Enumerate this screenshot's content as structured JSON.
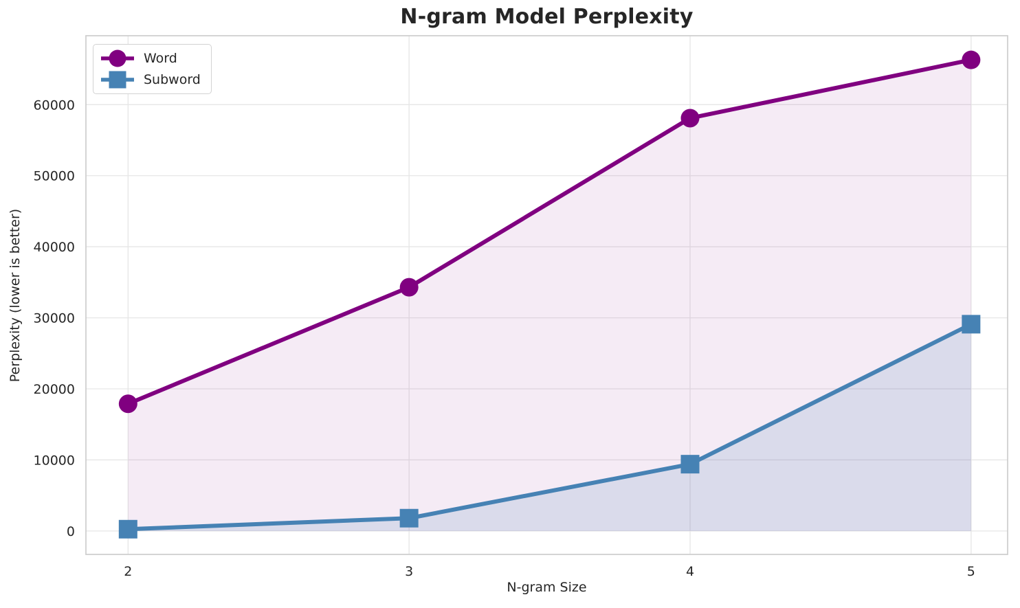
{
  "page": {
    "background": "#ffffff"
  },
  "chart_data": {
    "type": "line",
    "title": "N-gram Model Perplexity",
    "xlabel": "N-gram Size",
    "ylabel": "Perplexity (lower is better)",
    "x": [
      2,
      3,
      4,
      5
    ],
    "series": [
      {
        "name": "Word",
        "color": "#800080",
        "marker": "circle",
        "values": [
          17900,
          34300,
          58100,
          66300
        ],
        "fill_to_zero": true,
        "fill_opacity": 0.08
      },
      {
        "name": "Subword",
        "color": "#4682B4",
        "marker": "square",
        "values": [
          250,
          1800,
          9400,
          29100
        ],
        "fill_to_zero": true,
        "fill_opacity": 0.15
      }
    ],
    "xticks": [
      2,
      3,
      4,
      5
    ],
    "yticks": [
      0,
      10000,
      20000,
      30000,
      40000,
      50000,
      60000
    ],
    "xlim": [
      1.85,
      5.13
    ],
    "ylim": [
      -3300,
      69700
    ],
    "grid": true,
    "legend_position": "upper left",
    "styles": {
      "grid_color": "#e6e6e6",
      "spine_color": "#cfcfcf",
      "text_color": "#262626",
      "line_width": 6
    }
  }
}
